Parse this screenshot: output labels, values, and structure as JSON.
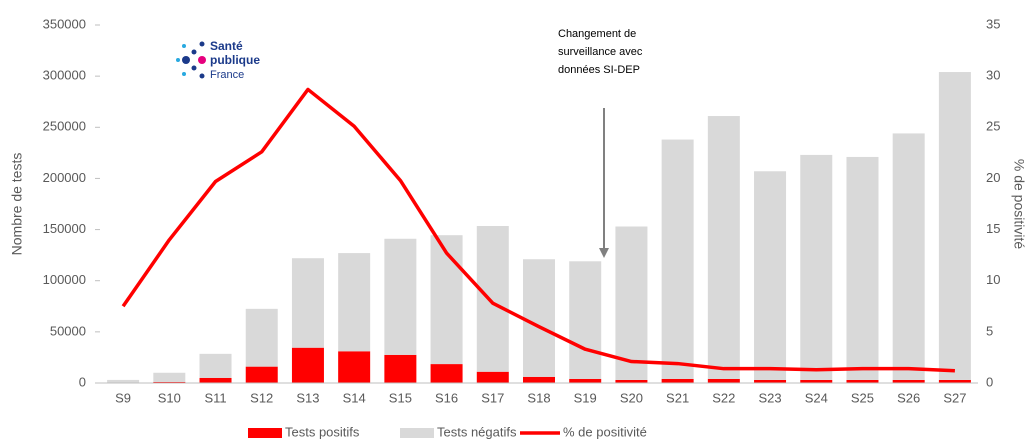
{
  "chart_data": {
    "type": "bar",
    "stacked": true,
    "categories": [
      "S9",
      "S10",
      "S11",
      "S12",
      "S13",
      "S14",
      "S15",
      "S16",
      "S17",
      "S18",
      "S19",
      "S20",
      "S21",
      "S22",
      "S23",
      "S24",
      "S25",
      "S26",
      "S27"
    ],
    "series": [
      {
        "name": "Tests positifs",
        "color": "#ff0000",
        "values": [
          300,
          1000,
          5000,
          16000,
          34500,
          31000,
          27500,
          18500,
          11000,
          6000,
          4000,
          3000,
          4000,
          4000,
          3000,
          3000,
          3000,
          3000,
          3000
        ]
      },
      {
        "name": "Tests négatifs",
        "color": "#d9d9d9",
        "values": [
          2700,
          9000,
          23500,
          56500,
          87500,
          96000,
          113500,
          126000,
          142500,
          115000,
          115000,
          150000,
          234000,
          257000,
          204000,
          220000,
          218000,
          241000,
          301000
        ]
      },
      {
        "name": "% de positivité",
        "color": "#ff0000",
        "kind": "line",
        "axis": "y2",
        "values": [
          7.5,
          14,
          19.7,
          22.6,
          28.7,
          25.1,
          19.8,
          12.7,
          7.8,
          5.5,
          3.3,
          2.1,
          1.9,
          1.4,
          1.4,
          1.3,
          1.4,
          1.4,
          1.2
        ]
      }
    ],
    "ylabel": "Nombre de tests",
    "y2label": "% de positivité",
    "ylim": [
      0,
      350000
    ],
    "yticks": [
      0,
      50000,
      100000,
      150000,
      200000,
      250000,
      300000,
      350000
    ],
    "y2lim": [
      0,
      35
    ],
    "y2ticks": [
      0,
      5,
      10,
      15,
      20,
      25,
      30,
      35
    ],
    "annotation": [
      "Changement de",
      "surveillance avec",
      "données SI-DEP"
    ],
    "logo": [
      "Santé",
      "publique",
      "France"
    ],
    "legend": "bottom"
  }
}
